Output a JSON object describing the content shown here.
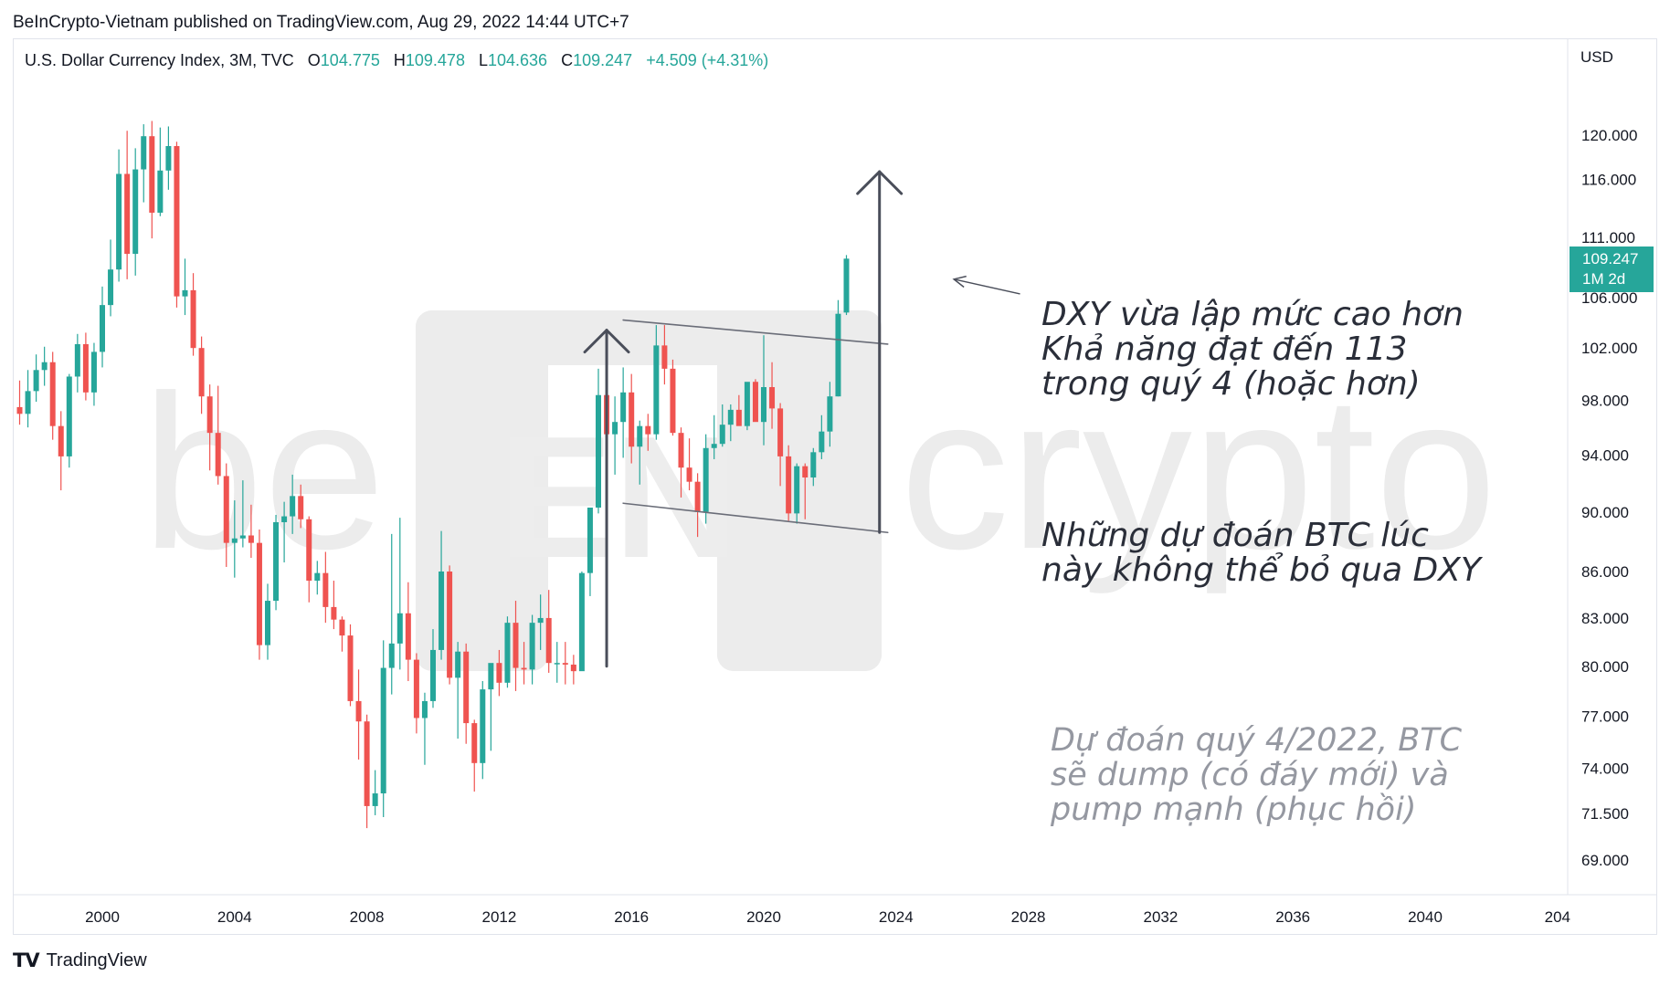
{
  "publisher_line": "BeInCrypto-Vietnam published on TradingView.com, Aug 29, 2022 14:44 UTC+7",
  "legend": {
    "symbol": "U.S. Dollar Currency Index, 3M, TVC",
    "open_label": "O",
    "open": "104.775",
    "high_label": "H",
    "high": "109.478",
    "low_label": "L",
    "low": "104.636",
    "close_label": "C",
    "close": "109.247",
    "change": "+4.509 (+4.31%)"
  },
  "currency": "USD",
  "last_price_tag": {
    "price": "109.247",
    "countdown": "1M 2d"
  },
  "annotations": {
    "main": [
      "DXY vừa lập mức cao hơn",
      "Khả năng đạt đến 113",
      "trong quý 4 (hoặc hơn)"
    ],
    "btc": [
      "Những dự đoán BTC lúc",
      "này không thể bỏ qua DXY"
    ],
    "forecast": [
      "Dự đoán quý 4/2022, BTC",
      "sẽ dump (có đáy mới) và",
      "pump mạnh (phục hồi)"
    ]
  },
  "watermark": {
    "left": "be",
    "right": "crypto"
  },
  "footer": {
    "brand": "TradingView"
  },
  "colors": {
    "up": "#26a69a",
    "down": "#ef5350",
    "text": "#131722",
    "drawing": "#4a4e5a",
    "channel": "#6a6d78"
  },
  "chart_data": {
    "type": "candlestick",
    "scale": "log",
    "title": "U.S. Dollar Currency Index, 3M, TVC",
    "x_ticks": [
      "2000",
      "2004",
      "2008",
      "2012",
      "2016",
      "2020",
      "2024",
      "2028",
      "2032",
      "2036",
      "2040",
      "204"
    ],
    "y_ticks": [
      "120.000",
      "116.000",
      "111.000",
      "106.000",
      "102.000",
      "98.000",
      "94.000",
      "90.000",
      "86.000",
      "83.000",
      "80.000",
      "77.000",
      "74.000",
      "71.500",
      "69.000"
    ],
    "candles": [
      {
        "date": "1997-07",
        "o": 97.5,
        "h": 99.5,
        "l": 96.2,
        "c": 97.0
      },
      {
        "date": "1997-10",
        "o": 97.0,
        "h": 100.3,
        "l": 96.0,
        "c": 98.7
      },
      {
        "date": "1998-01",
        "o": 98.7,
        "h": 101.5,
        "l": 97.9,
        "c": 100.3
      },
      {
        "date": "1998-04",
        "o": 100.3,
        "h": 102.1,
        "l": 99.1,
        "c": 100.9
      },
      {
        "date": "1998-07",
        "o": 100.9,
        "h": 101.7,
        "l": 95.1,
        "c": 96.1
      },
      {
        "date": "1998-10",
        "o": 96.1,
        "h": 97.2,
        "l": 91.5,
        "c": 93.9
      },
      {
        "date": "1999-01",
        "o": 93.9,
        "h": 100.0,
        "l": 93.1,
        "c": 99.8
      },
      {
        "date": "1999-04",
        "o": 99.8,
        "h": 103.1,
        "l": 98.6,
        "c": 102.3
      },
      {
        "date": "1999-07",
        "o": 102.3,
        "h": 103.2,
        "l": 98.0,
        "c": 98.6
      },
      {
        "date": "1999-10",
        "o": 98.6,
        "h": 102.4,
        "l": 97.6,
        "c": 101.7
      },
      {
        "date": "2000-01",
        "o": 101.7,
        "h": 106.9,
        "l": 100.5,
        "c": 105.4
      },
      {
        "date": "2000-04",
        "o": 105.4,
        "h": 110.8,
        "l": 104.5,
        "c": 108.3
      },
      {
        "date": "2000-07",
        "o": 108.3,
        "h": 118.7,
        "l": 107.3,
        "c": 116.5
      },
      {
        "date": "2000-10",
        "o": 116.5,
        "h": 120.4,
        "l": 107.5,
        "c": 109.6
      },
      {
        "date": "2001-01",
        "o": 109.6,
        "h": 118.8,
        "l": 107.8,
        "c": 116.9
      },
      {
        "date": "2001-04",
        "o": 116.9,
        "h": 121.0,
        "l": 114.0,
        "c": 119.9
      },
      {
        "date": "2001-07",
        "o": 119.9,
        "h": 121.3,
        "l": 110.9,
        "c": 113.1
      },
      {
        "date": "2001-10",
        "o": 113.1,
        "h": 120.7,
        "l": 112.8,
        "c": 116.8
      },
      {
        "date": "2002-01",
        "o": 116.8,
        "h": 120.8,
        "l": 115.1,
        "c": 119.0
      },
      {
        "date": "2002-04",
        "o": 119.0,
        "h": 119.4,
        "l": 105.2,
        "c": 106.1
      },
      {
        "date": "2002-07",
        "o": 106.1,
        "h": 109.2,
        "l": 104.6,
        "c": 106.6
      },
      {
        "date": "2002-10",
        "o": 106.6,
        "h": 108.0,
        "l": 101.4,
        "c": 102.0
      },
      {
        "date": "2003-01",
        "o": 102.0,
        "h": 102.9,
        "l": 97.0,
        "c": 98.3
      },
      {
        "date": "2003-04",
        "o": 98.3,
        "h": 99.2,
        "l": 92.9,
        "c": 95.6
      },
      {
        "date": "2003-07",
        "o": 95.6,
        "h": 99.1,
        "l": 91.9,
        "c": 92.5
      },
      {
        "date": "2003-10",
        "o": 92.5,
        "h": 93.4,
        "l": 86.3,
        "c": 87.9
      },
      {
        "date": "2004-01",
        "o": 87.9,
        "h": 90.8,
        "l": 85.6,
        "c": 88.2
      },
      {
        "date": "2004-04",
        "o": 88.2,
        "h": 92.2,
        "l": 87.6,
        "c": 88.4
      },
      {
        "date": "2004-07",
        "o": 88.4,
        "h": 90.5,
        "l": 86.9,
        "c": 87.9
      },
      {
        "date": "2004-10",
        "o": 87.9,
        "h": 88.8,
        "l": 80.4,
        "c": 81.3
      },
      {
        "date": "2005-01",
        "o": 81.3,
        "h": 85.2,
        "l": 80.4,
        "c": 84.1
      },
      {
        "date": "2005-04",
        "o": 84.1,
        "h": 89.8,
        "l": 83.5,
        "c": 89.3
      },
      {
        "date": "2005-07",
        "o": 89.3,
        "h": 90.7,
        "l": 86.6,
        "c": 89.7
      },
      {
        "date": "2005-10",
        "o": 89.7,
        "h": 92.6,
        "l": 88.5,
        "c": 91.1
      },
      {
        "date": "2006-01",
        "o": 91.1,
        "h": 91.9,
        "l": 88.9,
        "c": 89.5
      },
      {
        "date": "2006-04",
        "o": 89.5,
        "h": 89.7,
        "l": 84.0,
        "c": 85.4
      },
      {
        "date": "2006-07",
        "o": 85.4,
        "h": 86.7,
        "l": 84.5,
        "c": 85.9
      },
      {
        "date": "2006-10",
        "o": 85.9,
        "h": 87.3,
        "l": 82.7,
        "c": 83.7
      },
      {
        "date": "2007-01",
        "o": 83.7,
        "h": 85.4,
        "l": 82.3,
        "c": 82.9
      },
      {
        "date": "2007-04",
        "o": 82.9,
        "h": 83.1,
        "l": 80.9,
        "c": 81.9
      },
      {
        "date": "2007-07",
        "o": 81.9,
        "h": 82.6,
        "l": 77.6,
        "c": 77.9
      },
      {
        "date": "2007-10",
        "o": 77.9,
        "h": 79.8,
        "l": 74.5,
        "c": 76.7
      },
      {
        "date": "2008-01",
        "o": 76.7,
        "h": 77.1,
        "l": 70.7,
        "c": 71.9
      },
      {
        "date": "2008-04",
        "o": 71.9,
        "h": 73.9,
        "l": 71.4,
        "c": 72.6
      },
      {
        "date": "2008-07",
        "o": 72.6,
        "h": 81.6,
        "l": 71.3,
        "c": 79.9
      },
      {
        "date": "2008-10",
        "o": 79.9,
        "h": 88.5,
        "l": 78.3,
        "c": 81.4
      },
      {
        "date": "2009-01",
        "o": 81.4,
        "h": 89.6,
        "l": 79.8,
        "c": 83.3
      },
      {
        "date": "2009-04",
        "o": 83.3,
        "h": 85.3,
        "l": 79.1,
        "c": 80.4
      },
      {
        "date": "2009-07",
        "o": 80.4,
        "h": 80.8,
        "l": 76.0,
        "c": 76.9
      },
      {
        "date": "2009-10",
        "o": 76.9,
        "h": 78.4,
        "l": 74.2,
        "c": 77.9
      },
      {
        "date": "2010-01",
        "o": 77.9,
        "h": 82.3,
        "l": 77.5,
        "c": 81.0
      },
      {
        "date": "2010-04",
        "o": 81.0,
        "h": 88.7,
        "l": 80.4,
        "c": 86.0
      },
      {
        "date": "2010-07",
        "o": 86.0,
        "h": 86.4,
        "l": 78.9,
        "c": 79.3
      },
      {
        "date": "2010-10",
        "o": 79.3,
        "h": 81.5,
        "l": 75.7,
        "c": 80.9
      },
      {
        "date": "2011-01",
        "o": 80.9,
        "h": 81.4,
        "l": 75.4,
        "c": 76.6
      },
      {
        "date": "2011-04",
        "o": 76.6,
        "h": 76.8,
        "l": 72.7,
        "c": 74.3
      },
      {
        "date": "2011-07",
        "o": 74.3,
        "h": 79.1,
        "l": 73.4,
        "c": 78.6
      },
      {
        "date": "2011-10",
        "o": 78.6,
        "h": 80.1,
        "l": 75.0,
        "c": 80.2
      },
      {
        "date": "2012-01",
        "o": 80.2,
        "h": 81.0,
        "l": 78.2,
        "c": 79.0
      },
      {
        "date": "2012-04",
        "o": 79.0,
        "h": 83.1,
        "l": 78.7,
        "c": 82.7
      },
      {
        "date": "2012-07",
        "o": 82.7,
        "h": 84.1,
        "l": 78.5,
        "c": 79.9
      },
      {
        "date": "2012-10",
        "o": 79.9,
        "h": 81.5,
        "l": 78.9,
        "c": 79.8
      },
      {
        "date": "2013-01",
        "o": 79.8,
        "h": 83.2,
        "l": 78.9,
        "c": 82.7
      },
      {
        "date": "2013-04",
        "o": 82.7,
        "h": 84.5,
        "l": 81.0,
        "c": 83.0
      },
      {
        "date": "2013-07",
        "o": 83.0,
        "h": 84.8,
        "l": 79.6,
        "c": 80.2
      },
      {
        "date": "2013-10",
        "o": 80.2,
        "h": 81.5,
        "l": 79.0,
        "c": 80.2
      },
      {
        "date": "2014-01",
        "o": 80.2,
        "h": 81.5,
        "l": 78.9,
        "c": 80.1
      },
      {
        "date": "2014-04",
        "o": 80.1,
        "h": 80.7,
        "l": 78.9,
        "c": 79.7
      },
      {
        "date": "2014-07",
        "o": 79.7,
        "h": 86.0,
        "l": 79.9,
        "c": 85.9
      },
      {
        "date": "2014-10",
        "o": 85.9,
        "h": 90.3,
        "l": 84.4,
        "c": 90.3
      },
      {
        "date": "2015-01",
        "o": 90.3,
        "h": 100.4,
        "l": 89.9,
        "c": 98.4
      },
      {
        "date": "2015-04",
        "o": 98.4,
        "h": 100.1,
        "l": 93.1,
        "c": 95.5
      },
      {
        "date": "2015-07",
        "o": 95.5,
        "h": 98.3,
        "l": 92.6,
        "c": 96.4
      },
      {
        "date": "2015-10",
        "o": 96.4,
        "h": 100.5,
        "l": 93.8,
        "c": 98.6
      },
      {
        "date": "2016-01",
        "o": 98.6,
        "h": 100.0,
        "l": 93.4,
        "c": 94.6
      },
      {
        "date": "2016-04",
        "o": 94.6,
        "h": 96.5,
        "l": 91.9,
        "c": 96.1
      },
      {
        "date": "2016-07",
        "o": 96.1,
        "h": 97.0,
        "l": 94.3,
        "c": 95.5
      },
      {
        "date": "2016-10",
        "o": 95.5,
        "h": 103.8,
        "l": 95.1,
        "c": 102.2
      },
      {
        "date": "2017-01",
        "o": 102.2,
        "h": 103.8,
        "l": 99.2,
        "c": 100.4
      },
      {
        "date": "2017-04",
        "o": 100.4,
        "h": 101.1,
        "l": 95.4,
        "c": 95.6
      },
      {
        "date": "2017-07",
        "o": 95.6,
        "h": 96.0,
        "l": 91.0,
        "c": 93.1
      },
      {
        "date": "2017-10",
        "o": 93.1,
        "h": 95.2,
        "l": 91.5,
        "c": 92.1
      },
      {
        "date": "2018-01",
        "o": 92.1,
        "h": 92.7,
        "l": 88.3,
        "c": 90.0
      },
      {
        "date": "2018-04",
        "o": 90.0,
        "h": 95.5,
        "l": 89.2,
        "c": 94.5
      },
      {
        "date": "2018-07",
        "o": 94.5,
        "h": 96.9,
        "l": 93.7,
        "c": 94.8
      },
      {
        "date": "2018-10",
        "o": 94.8,
        "h": 97.7,
        "l": 94.6,
        "c": 96.2
      },
      {
        "date": "2019-01",
        "o": 96.2,
        "h": 97.7,
        "l": 95.0,
        "c": 97.3
      },
      {
        "date": "2019-04",
        "o": 97.3,
        "h": 98.4,
        "l": 96.6,
        "c": 96.1
      },
      {
        "date": "2019-07",
        "o": 96.1,
        "h": 99.3,
        "l": 95.8,
        "c": 99.4
      },
      {
        "date": "2019-10",
        "o": 99.4,
        "h": 99.6,
        "l": 96.5,
        "c": 96.4
      },
      {
        "date": "2020-01",
        "o": 96.4,
        "h": 103.0,
        "l": 94.7,
        "c": 99.0
      },
      {
        "date": "2020-04",
        "o": 99.0,
        "h": 100.9,
        "l": 95.9,
        "c": 97.4
      },
      {
        "date": "2020-07",
        "o": 97.4,
        "h": 97.8,
        "l": 91.8,
        "c": 93.9
      },
      {
        "date": "2020-10",
        "o": 93.9,
        "h": 94.7,
        "l": 89.4,
        "c": 89.9
      },
      {
        "date": "2021-01",
        "o": 89.9,
        "h": 93.4,
        "l": 89.2,
        "c": 93.2
      },
      {
        "date": "2021-04",
        "o": 93.2,
        "h": 93.4,
        "l": 89.5,
        "c": 92.4
      },
      {
        "date": "2021-07",
        "o": 92.4,
        "h": 94.5,
        "l": 91.8,
        "c": 94.2
      },
      {
        "date": "2021-10",
        "o": 94.2,
        "h": 96.9,
        "l": 93.7,
        "c": 95.7
      },
      {
        "date": "2022-01",
        "o": 95.7,
        "h": 99.4,
        "l": 94.6,
        "c": 98.3
      },
      {
        "date": "2022-04",
        "o": 98.3,
        "h": 105.8,
        "l": 98.3,
        "c": 104.7
      },
      {
        "date": "2022-07",
        "o": 104.8,
        "h": 109.5,
        "l": 104.6,
        "c": 109.2
      }
    ],
    "drawings": {
      "channel_upper": [
        [
          "2015-10",
          104.2
        ],
        [
          "2023-10",
          102.3
        ]
      ],
      "channel_lower": [
        [
          "2015-10",
          90.6
        ],
        [
          "2023-10",
          88.6
        ]
      ],
      "arrow_2014": {
        "date": "2015-04",
        "from": 80.0,
        "to": 103.4
      },
      "arrow_2023": {
        "date": "2023-07",
        "from": 88.6,
        "to": 116.7
      },
      "pointer_from": [
        "2027-10",
        106.3
      ],
      "pointer_to": [
        "2025-10",
        107.5
      ]
    }
  }
}
